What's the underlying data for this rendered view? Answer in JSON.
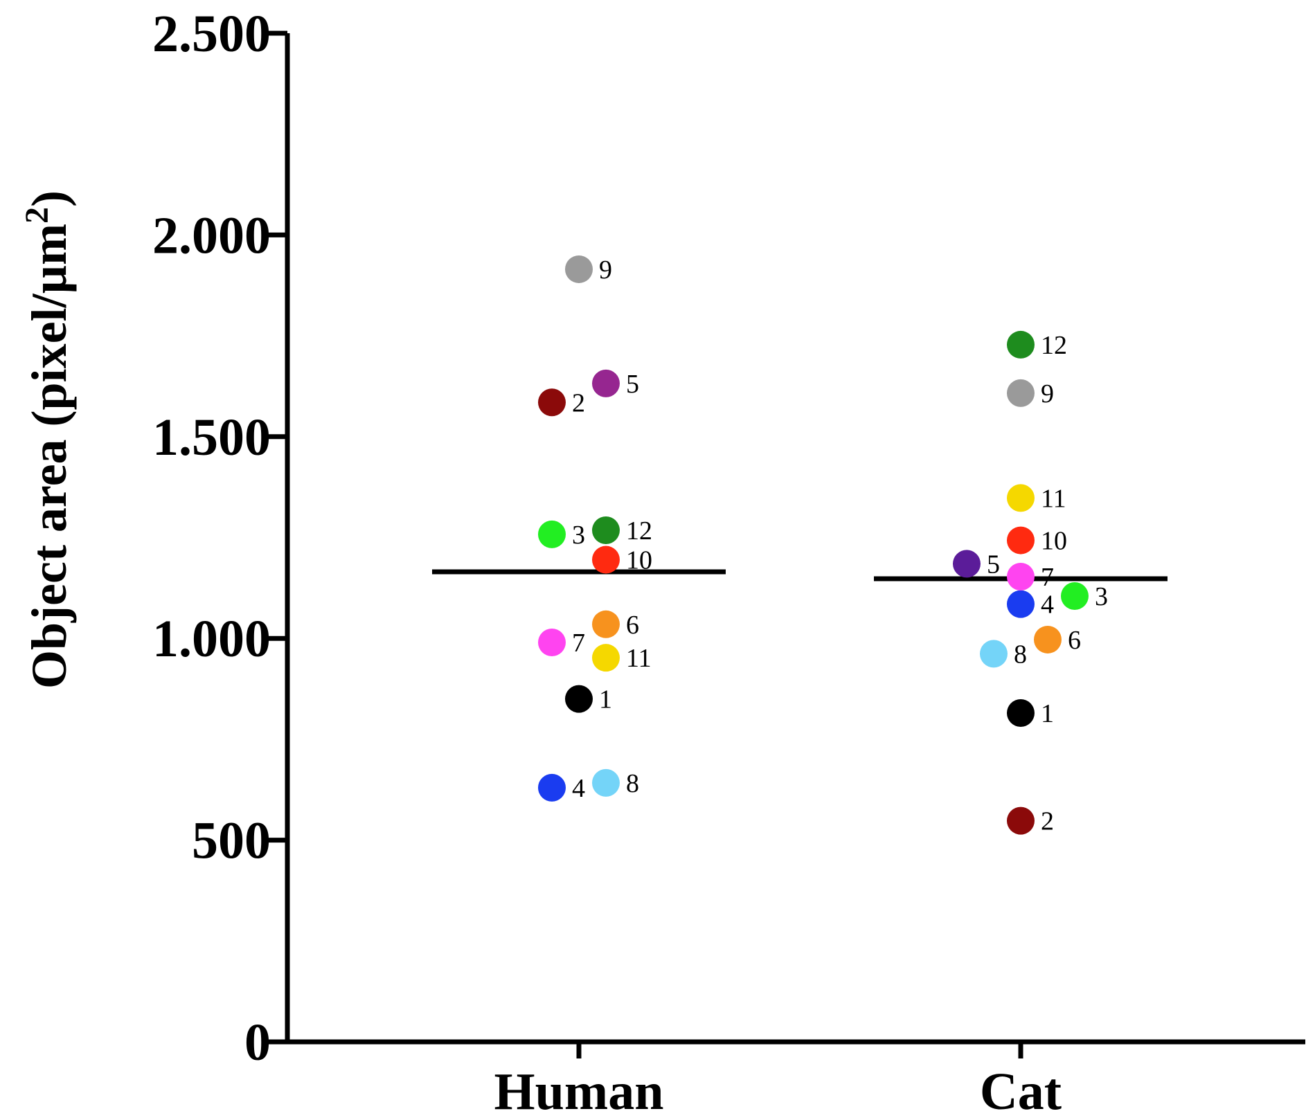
{
  "chart_data": {
    "type": "scatter",
    "title": "",
    "xlabel": "",
    "ylabel": "Object area (pixel/µm",
    "ylabel_superscript": "2",
    "ylabel_close": ")",
    "ylim": [
      0,
      2500
    ],
    "yticks": [
      0,
      500,
      1000,
      1500,
      2000,
      2500
    ],
    "ytick_labels": [
      "0",
      "500",
      "1.000",
      "1.500",
      "2.000",
      "2.500"
    ],
    "categories": [
      "Human",
      "Cat"
    ],
    "means": [
      1165,
      1148
    ],
    "series": [
      {
        "name": "Human",
        "points": [
          {
            "id": "1",
            "value": 850,
            "color": "#000000",
            "offset": 0
          },
          {
            "id": "2",
            "value": 1585,
            "color": "#8B0A0A",
            "offset": -1
          },
          {
            "id": "3",
            "value": 1258,
            "color": "#22EE22",
            "offset": -1
          },
          {
            "id": "4",
            "value": 630,
            "color": "#1A3CF0",
            "offset": -1
          },
          {
            "id": "5",
            "value": 1632,
            "color": "#962690",
            "offset": 1
          },
          {
            "id": "6",
            "value": 1035,
            "color": "#F7921E",
            "offset": 1
          },
          {
            "id": "7",
            "value": 990,
            "color": "#FF44F0",
            "offset": -1
          },
          {
            "id": "8",
            "value": 642,
            "color": "#74D4F8",
            "offset": 1
          },
          {
            "id": "9",
            "value": 1915,
            "color": "#9A9A9A",
            "offset": 0
          },
          {
            "id": "10",
            "value": 1195,
            "color": "#FF2A10",
            "offset": 1
          },
          {
            "id": "11",
            "value": 952,
            "color": "#F5D800",
            "offset": 1
          },
          {
            "id": "12",
            "value": 1268,
            "color": "#1E8C1E",
            "offset": 1
          }
        ]
      },
      {
        "name": "Cat",
        "points": [
          {
            "id": "1",
            "value": 815,
            "color": "#000000",
            "offset": 0
          },
          {
            "id": "2",
            "value": 548,
            "color": "#8B0A0A",
            "offset": 0
          },
          {
            "id": "3",
            "value": 1105,
            "color": "#22EE22",
            "offset": 2
          },
          {
            "id": "4",
            "value": 1085,
            "color": "#1A3CF0",
            "offset": 0
          },
          {
            "id": "5",
            "value": 1185,
            "color": "#5B1C99",
            "offset": -2
          },
          {
            "id": "6",
            "value": 997,
            "color": "#F7921E",
            "offset": 1
          },
          {
            "id": "7",
            "value": 1153,
            "color": "#FF44F0",
            "offset": 0
          },
          {
            "id": "8",
            "value": 962,
            "color": "#74D4F8",
            "offset": -1
          },
          {
            "id": "9",
            "value": 1608,
            "color": "#9A9A9A",
            "offset": 0
          },
          {
            "id": "10",
            "value": 1243,
            "color": "#FF2A10",
            "offset": 0
          },
          {
            "id": "11",
            "value": 1348,
            "color": "#F5D800",
            "offset": 0
          },
          {
            "id": "12",
            "value": 1728,
            "color": "#1E8C1E",
            "offset": 0
          }
        ]
      }
    ]
  }
}
